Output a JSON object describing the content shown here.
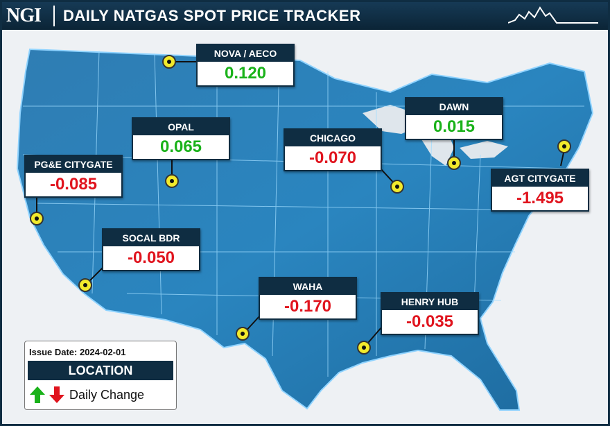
{
  "header": {
    "logo": "NGI",
    "title": "DAILY NATGAS SPOT PRICE TRACKER"
  },
  "legend": {
    "issue_date": "Issue Date: 2024-02-01",
    "location_label": "LOCATION",
    "change_label": "Daily Change",
    "up_color": "#1ab21a",
    "down_color": "#e0141e"
  },
  "locations": [
    {
      "name": "NOVA / AECO",
      "value": "0.120",
      "direction": "up"
    },
    {
      "name": "OPAL",
      "value": "0.065",
      "direction": "up"
    },
    {
      "name": "PG&E CITYGATE",
      "value": "-0.085",
      "direction": "down"
    },
    {
      "name": "SOCAL BDR",
      "value": "-0.050",
      "direction": "down"
    },
    {
      "name": "CHICAGO",
      "value": "-0.070",
      "direction": "down"
    },
    {
      "name": "DAWN",
      "value": "0.015",
      "direction": "up"
    },
    {
      "name": "AGT CITYGATE",
      "value": "-1.495",
      "direction": "down"
    },
    {
      "name": "WAHA",
      "value": "-0.170",
      "direction": "down"
    },
    {
      "name": "HENRY HUB",
      "value": "-0.035",
      "direction": "down"
    }
  ]
}
